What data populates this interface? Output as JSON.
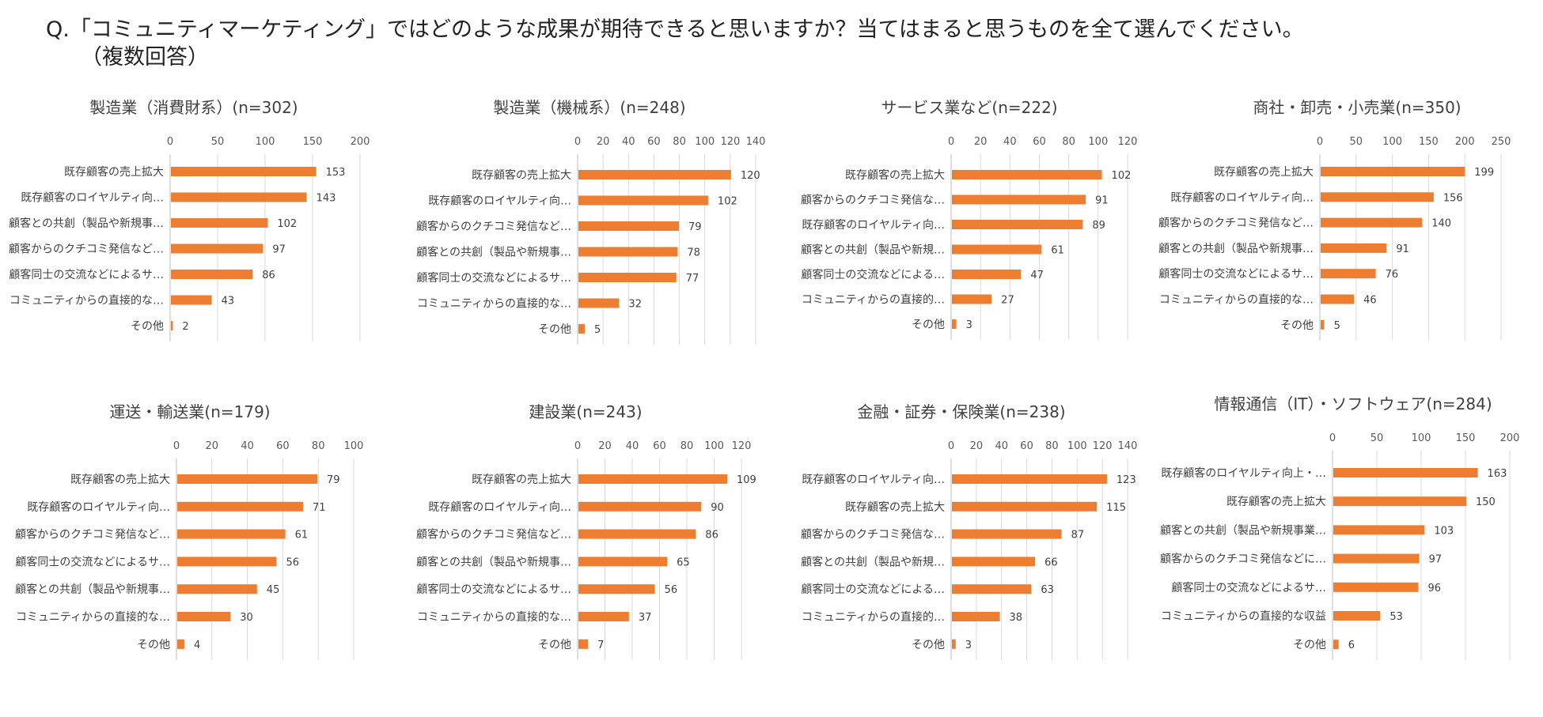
{
  "question": {
    "line1": "Q.「コミュニティマーケティング」ではどのような成果が期待できると思いますか？当てはまると思うものを全て選んでください。",
    "line2": "（複数回答）"
  },
  "colors": {
    "bar": "#ed7d31",
    "grid": "#d9d9d9",
    "axis": "#bfbfbf",
    "text": "#404040"
  },
  "chart_data": [
    {
      "type": "bar",
      "orientation": "horizontal",
      "title": "製造業（消費財系）(n=302)",
      "categories": [
        "既存顧客の売上拡大",
        "既存顧客のロイヤルティ向…",
        "顧客との共創（製品や新規事…",
        "顧客からのクチコミ発信など…",
        "顧客同士の交流などによるサ…",
        "コミュニティからの直接的な…",
        "その他"
      ],
      "values": [
        153,
        143,
        102,
        97,
        86,
        43,
        2
      ],
      "xlim": [
        0,
        200
      ],
      "ticks": [
        0,
        50,
        100,
        150,
        200
      ],
      "grid": true
    },
    {
      "type": "bar",
      "orientation": "horizontal",
      "title": "製造業（機械系）(n=248)",
      "categories": [
        "既存顧客の売上拡大",
        "既存顧客のロイヤルティ向…",
        "顧客からのクチコミ発信など…",
        "顧客との共創（製品や新規事…",
        "顧客同士の交流などによるサ…",
        "コミュニティからの直接的な…",
        "その他"
      ],
      "values": [
        120,
        102,
        79,
        78,
        77,
        32,
        5
      ],
      "xlim": [
        0,
        140
      ],
      "ticks": [
        0,
        20,
        40,
        60,
        80,
        100,
        120,
        140
      ],
      "grid": true
    },
    {
      "type": "bar",
      "orientation": "horizontal",
      "title": "サービス業など(n=222)",
      "categories": [
        "既存顧客の売上拡大",
        "顧客からのクチコミ発信な…",
        "既存顧客のロイヤルティ向…",
        "顧客との共創（製品や新規…",
        "顧客同士の交流などによる…",
        "コミュニティからの直接的…",
        "その他"
      ],
      "values": [
        102,
        91,
        89,
        61,
        47,
        27,
        3
      ],
      "xlim": [
        0,
        120
      ],
      "ticks": [
        0,
        20,
        40,
        60,
        80,
        100,
        120
      ],
      "grid": true
    },
    {
      "type": "bar",
      "orientation": "horizontal",
      "title": "商社・卸売・小売業(n=350)",
      "categories": [
        "既存顧客の売上拡大",
        "既存顧客のロイヤルティ向…",
        "顧客からのクチコミ発信など…",
        "顧客との共創（製品や新規事…",
        "顧客同士の交流などによるサ…",
        "コミュニティからの直接的な…",
        "その他"
      ],
      "values": [
        199,
        156,
        140,
        91,
        76,
        46,
        5
      ],
      "xlim": [
        0,
        250
      ],
      "ticks": [
        0,
        50,
        100,
        150,
        200,
        250
      ],
      "grid": true
    },
    {
      "type": "bar",
      "orientation": "horizontal",
      "title": "運送・輸送業(n=179)",
      "categories": [
        "既存顧客の売上拡大",
        "既存顧客のロイヤルティ向…",
        "顧客からのクチコミ発信など…",
        "顧客同士の交流などによるサ…",
        "顧客との共創（製品や新規事…",
        "コミュニティからの直接的な…",
        "その他"
      ],
      "values": [
        79,
        71,
        61,
        56,
        45,
        30,
        4
      ],
      "xlim": [
        0,
        100
      ],
      "ticks": [
        0,
        20,
        40,
        60,
        80,
        100
      ],
      "grid": true
    },
    {
      "type": "bar",
      "orientation": "horizontal",
      "title": "建設業(n=243)",
      "categories": [
        "既存顧客の売上拡大",
        "既存顧客のロイヤルティ向…",
        "顧客からのクチコミ発信など…",
        "顧客との共創（製品や新規事…",
        "顧客同士の交流などによるサ…",
        "コミュニティからの直接的な…",
        "その他"
      ],
      "values": [
        109,
        90,
        86,
        65,
        56,
        37,
        7
      ],
      "xlim": [
        0,
        120
      ],
      "ticks": [
        0,
        20,
        40,
        60,
        80,
        100,
        120
      ],
      "grid": true
    },
    {
      "type": "bar",
      "orientation": "horizontal",
      "title": "金融・証券・保険業(n=238)",
      "categories": [
        "既存顧客のロイヤルティ向…",
        "既存顧客の売上拡大",
        "顧客からのクチコミ発信な…",
        "顧客との共創（製品や新規…",
        "顧客同士の交流などによる…",
        "コミュニティからの直接的…",
        "その他"
      ],
      "values": [
        123,
        115,
        87,
        66,
        63,
        38,
        3
      ],
      "xlim": [
        0,
        140
      ],
      "ticks": [
        0,
        20,
        40,
        60,
        80,
        100,
        120,
        140
      ],
      "grid": true
    },
    {
      "type": "bar",
      "orientation": "horizontal",
      "title": "情報通信（IT）・ソフトウェア(n=284)",
      "categories": [
        "既存顧客のロイヤルティ向上・…",
        "既存顧客の売上拡大",
        "顧客との共創（製品や新規事業…",
        "顧客からのクチコミ発信などに…",
        "顧客同士の交流などによるサ…",
        "コミュニティからの直接的な収益",
        "その他"
      ],
      "values": [
        163,
        150,
        103,
        97,
        96,
        53,
        6
      ],
      "xlim": [
        0,
        200
      ],
      "ticks": [
        0,
        50,
        100,
        150,
        200
      ],
      "grid": true
    }
  ]
}
